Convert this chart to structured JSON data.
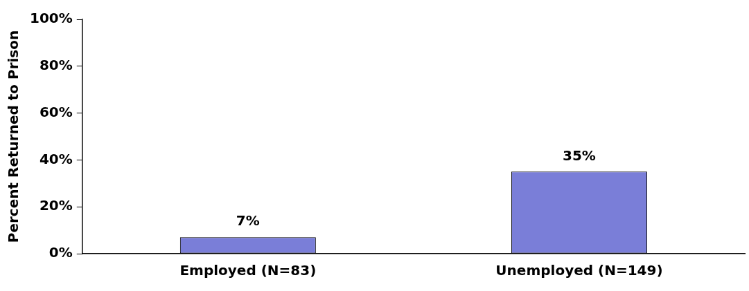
{
  "chart_data": {
    "type": "bar",
    "ylabel": "Percent Returned to Prison",
    "categories": [
      "Employed (N=83)",
      "Unemployed (N=149)"
    ],
    "values": [
      7,
      35
    ],
    "color": "#7a7ed8",
    "value_labels": [
      "7%",
      "35%"
    ],
    "ylim": [
      0,
      100
    ],
    "yticks": [
      {
        "value": 0,
        "label": "0%"
      },
      {
        "value": 20,
        "label": "20%"
      },
      {
        "value": 40,
        "label": "40%"
      },
      {
        "value": 60,
        "label": "60%"
      },
      {
        "value": 80,
        "label": "80%"
      },
      {
        "value": 100,
        "label": "100%"
      }
    ],
    "grid": false,
    "legend": false
  }
}
